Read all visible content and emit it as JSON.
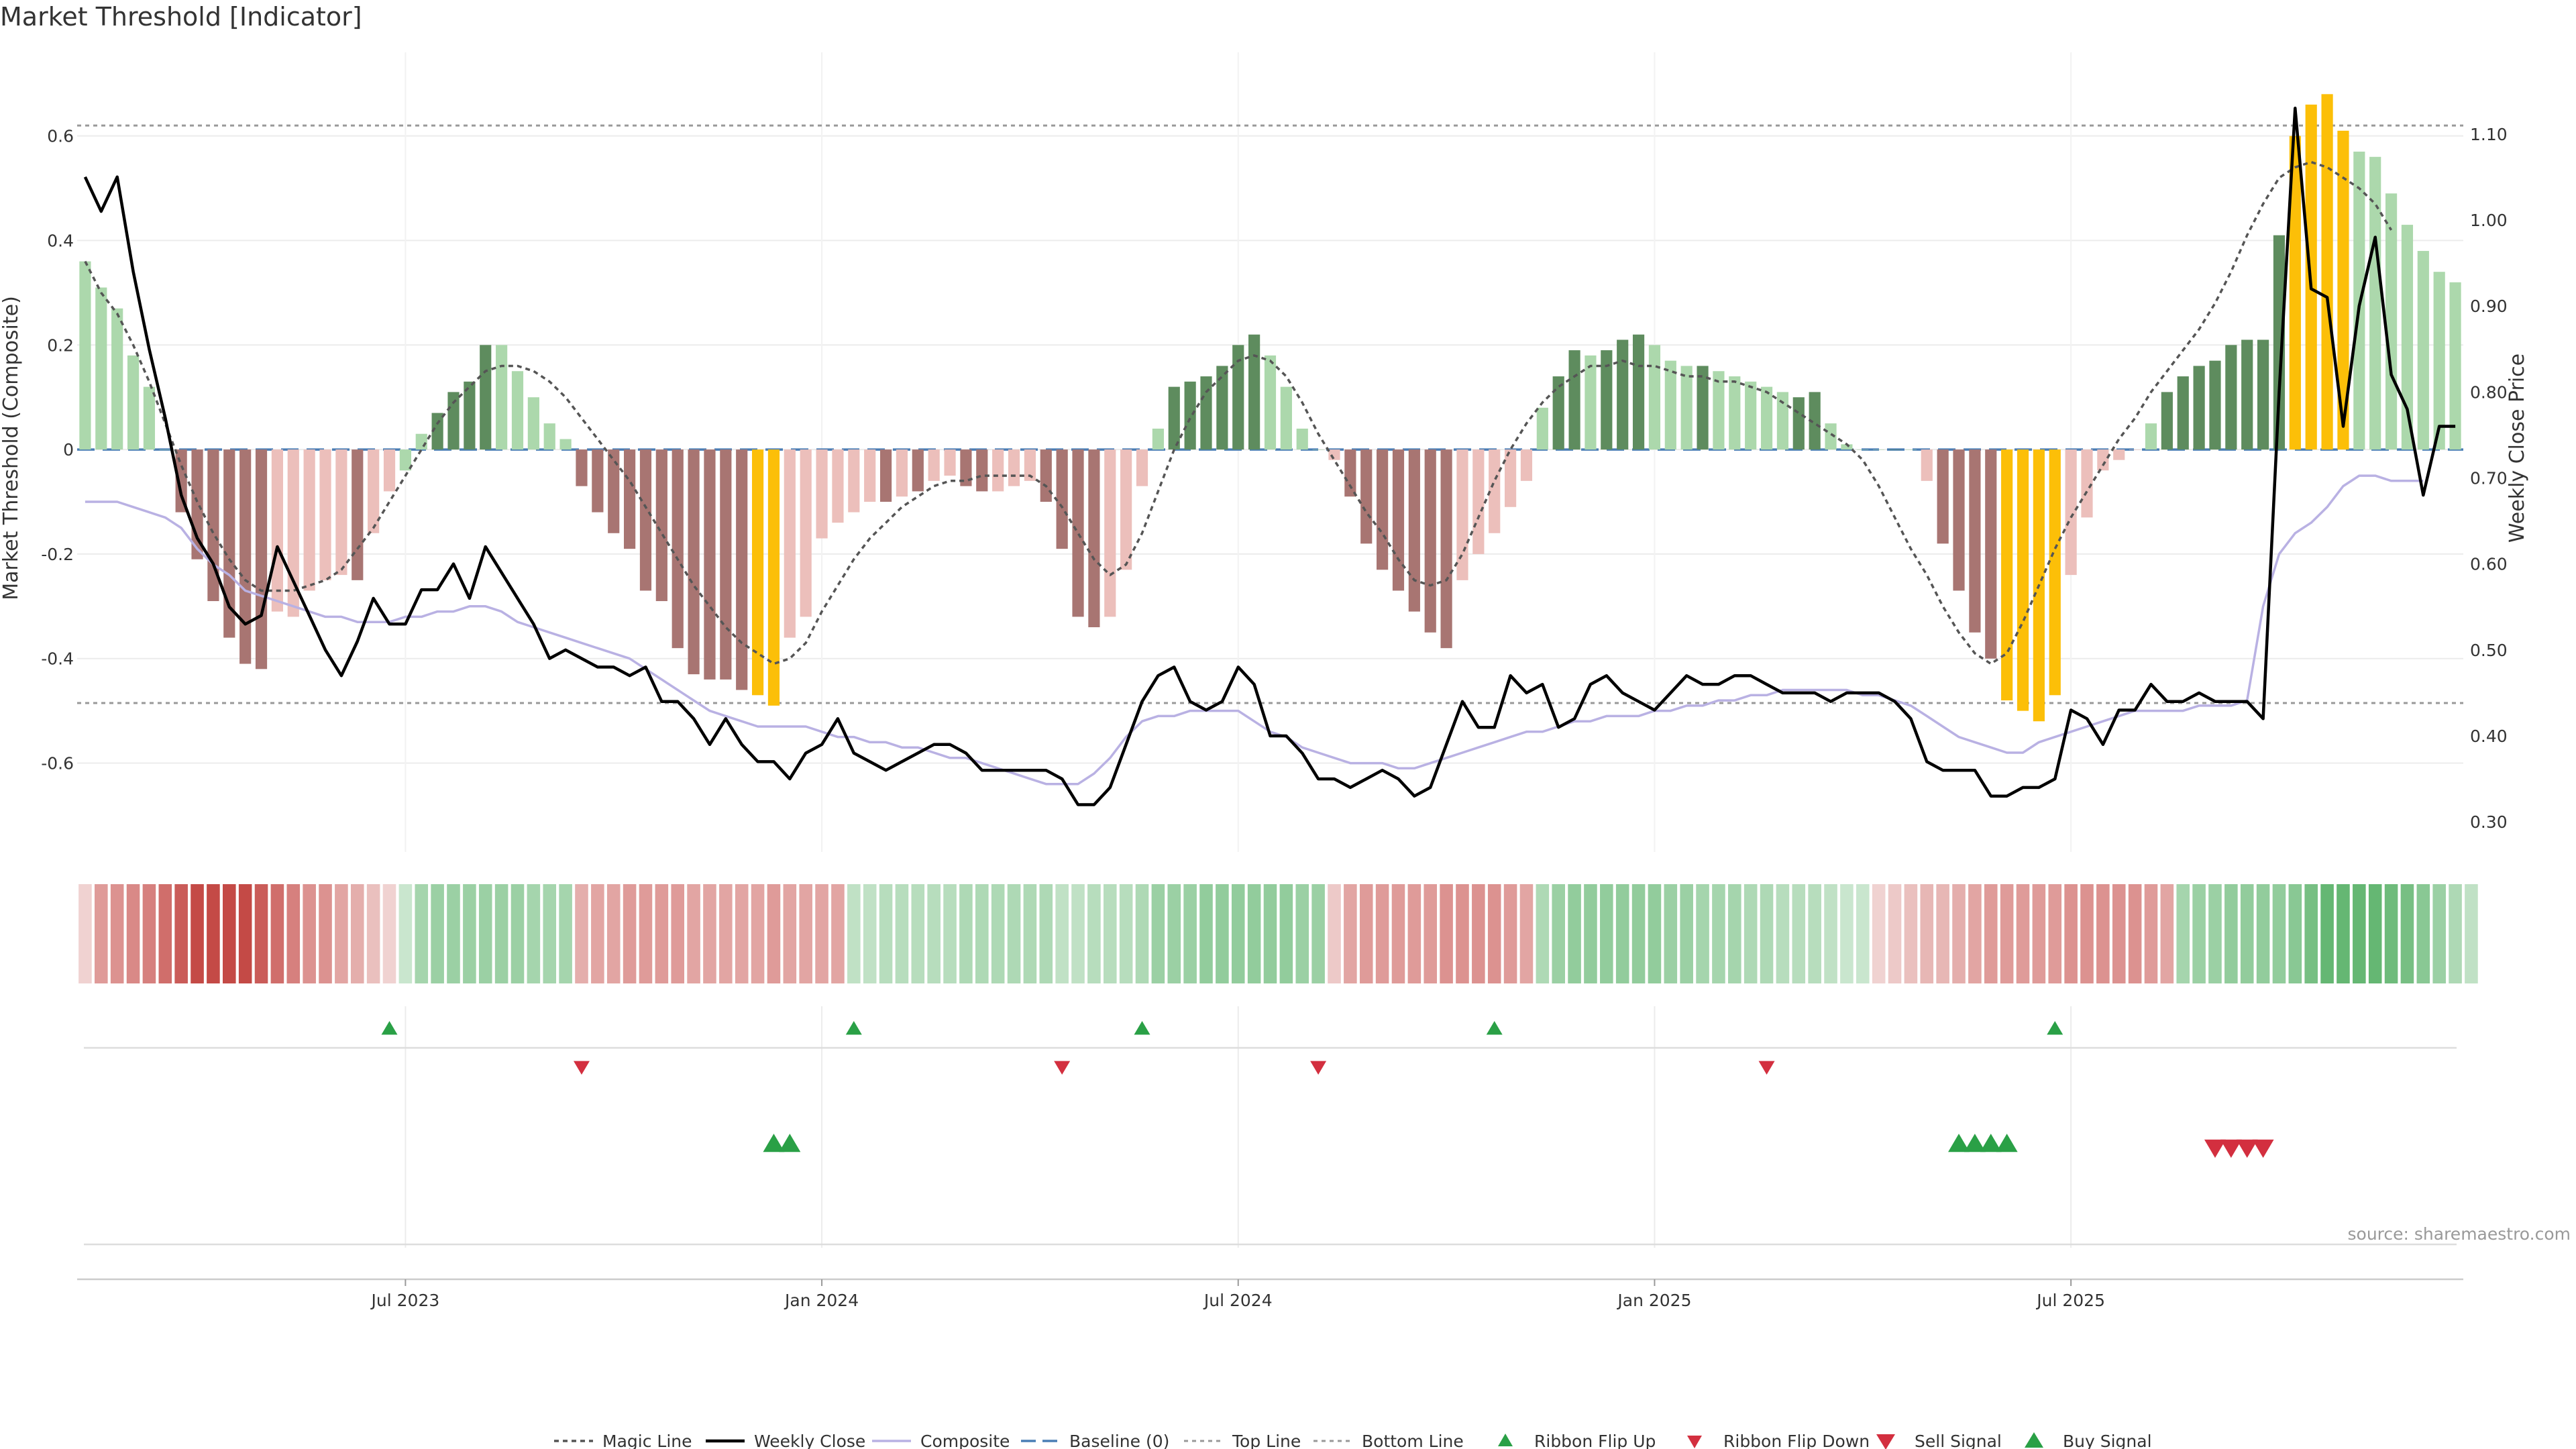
{
  "chart_data": {
    "type": "bar",
    "title": "Market Threshold [Indicator]",
    "ylabel": "Market Threshold (Composite)",
    "y2label": "Weekly Close Price",
    "source": "source: sharemaestro.com",
    "ylim": [
      -0.77,
      0.76
    ],
    "y2lim": [
      0.265,
      1.195
    ],
    "y_ticks": [
      -0.6,
      -0.4,
      -0.2,
      0,
      0.2,
      0.4,
      0.6
    ],
    "y_tick_labels": [
      "-0.6",
      "-0.4",
      "-0.2",
      "0",
      "0.2",
      "0.4",
      "0.6"
    ],
    "y2_ticks": [
      0.3,
      0.4,
      0.5,
      0.6,
      0.7,
      0.8,
      0.9,
      1.0,
      1.1
    ],
    "y2_tick_labels": [
      "0.30",
      "0.40",
      "0.50",
      "0.60",
      "0.70",
      "0.80",
      "0.90",
      "1.00",
      "1.10"
    ],
    "x_ticks": [
      20,
      46,
      72,
      98,
      124
    ],
    "x_tick_labels": [
      "Jul 2023",
      "Jan 2024",
      "Jul 2024",
      "Jan 2025",
      "Jul 2025"
    ],
    "top_line": 0.62,
    "bottom_line": -0.485,
    "baseline": 0,
    "composite_bars": [
      0.36,
      0.31,
      0.27,
      0.18,
      0.12,
      0.0,
      -0.12,
      -0.21,
      -0.29,
      -0.36,
      -0.41,
      -0.42,
      -0.31,
      -0.32,
      -0.27,
      -0.25,
      -0.24,
      -0.25,
      -0.16,
      -0.08,
      -0.04,
      0.03,
      0.07,
      0.11,
      0.13,
      0.2,
      0.2,
      0.15,
      0.1,
      0.05,
      0.02,
      -0.07,
      -0.12,
      -0.16,
      -0.19,
      -0.27,
      -0.29,
      -0.38,
      -0.43,
      -0.44,
      -0.44,
      -0.46,
      -0.47,
      -0.49,
      -0.36,
      -0.32,
      -0.17,
      -0.14,
      -0.12,
      -0.1,
      -0.1,
      -0.09,
      -0.08,
      -0.06,
      -0.05,
      -0.07,
      -0.08,
      -0.08,
      -0.07,
      -0.06,
      -0.1,
      -0.19,
      -0.32,
      -0.34,
      -0.32,
      -0.23,
      -0.07,
      0.04,
      0.12,
      0.13,
      0.14,
      0.16,
      0.2,
      0.22,
      0.18,
      0.12,
      0.04,
      0.0,
      -0.02,
      -0.09,
      -0.18,
      -0.23,
      -0.27,
      -0.31,
      -0.35,
      -0.38,
      -0.25,
      -0.2,
      -0.16,
      -0.11,
      -0.06,
      0.08,
      0.14,
      0.19,
      0.18,
      0.19,
      0.21,
      0.22,
      0.2,
      0.17,
      0.16,
      0.16,
      0.15,
      0.14,
      0.13,
      0.12,
      0.11,
      0.1,
      0.11,
      0.05,
      0.01,
      0.0,
      0.0,
      0.0,
      0.0,
      -0.06,
      -0.18,
      -0.27,
      -0.35,
      -0.4,
      -0.48,
      -0.5,
      -0.52,
      -0.47,
      -0.24,
      -0.13,
      -0.04,
      -0.02,
      0.0,
      0.05,
      0.11,
      0.14,
      0.16,
      0.17,
      0.2,
      0.21,
      0.21,
      0.41,
      0.6,
      0.66,
      0.68,
      0.61,
      0.57,
      0.56,
      0.49,
      0.43,
      0.38,
      0.34,
      0.32
    ],
    "bar_colors": [
      "lightgreen",
      "lightgreen",
      "lightgreen",
      "lightgreen",
      "lightgreen",
      "lightgreen",
      "darkred",
      "darkred",
      "darkred",
      "darkred",
      "darkred",
      "darkred",
      "lightred",
      "lightred",
      "lightred",
      "lightred",
      "lightred",
      "darkred",
      "lightred",
      "lightred",
      "lightgreen",
      "lightgreen",
      "darkgreen",
      "darkgreen",
      "darkgreen",
      "darkgreen",
      "lightgreen",
      "lightgreen",
      "lightgreen",
      "lightgreen",
      "lightgreen",
      "darkred",
      "darkred",
      "darkred",
      "darkred",
      "darkred",
      "darkred",
      "darkred",
      "darkred",
      "darkred",
      "darkred",
      "darkred",
      "gold",
      "gold",
      "lightred",
      "lightred",
      "lightred",
      "lightred",
      "lightred",
      "lightred",
      "darkred",
      "lightred",
      "darkred",
      "lightred",
      "lightred",
      "darkred",
      "darkred",
      "lightred",
      "lightred",
      "lightred",
      "darkred",
      "darkred",
      "darkred",
      "darkred",
      "lightred",
      "lightred",
      "lightred",
      "lightgreen",
      "darkgreen",
      "darkgreen",
      "darkgreen",
      "darkgreen",
      "darkgreen",
      "darkgreen",
      "lightgreen",
      "lightgreen",
      "lightgreen",
      "lightgreen",
      "lightred",
      "darkred",
      "darkred",
      "darkred",
      "darkred",
      "darkred",
      "darkred",
      "darkred",
      "lightred",
      "lightred",
      "lightred",
      "lightred",
      "lightred",
      "lightgreen",
      "darkgreen",
      "darkgreen",
      "lightgreen",
      "darkgreen",
      "darkgreen",
      "darkgreen",
      "lightgreen",
      "lightgreen",
      "lightgreen",
      "darkgreen",
      "lightgreen",
      "lightgreen",
      "lightgreen",
      "lightgreen",
      "lightgreen",
      "darkgreen",
      "darkgreen",
      "lightgreen",
      "lightgreen",
      "lightgreen",
      "lightgreen",
      "darkgreen",
      "lightgreen",
      "lightred",
      "darkred",
      "darkred",
      "darkred",
      "darkred",
      "gold",
      "gold",
      "gold",
      "gold",
      "lightred",
      "lightred",
      "lightred",
      "lightred",
      "lightred",
      "lightgreen",
      "darkgreen",
      "darkgreen",
      "darkgreen",
      "darkgreen",
      "darkgreen",
      "darkgreen",
      "darkgreen",
      "darkgreen",
      "gold",
      "gold",
      "gold",
      "gold",
      "lightgreen",
      "lightgreen",
      "lightgreen",
      "lightgreen",
      "lightgreen",
      "lightgreen",
      "lightgreen"
    ],
    "magic_line": [
      0.36,
      0.3,
      0.26,
      0.2,
      0.13,
      0.05,
      -0.03,
      -0.1,
      -0.16,
      -0.21,
      -0.25,
      -0.27,
      -0.27,
      -0.27,
      -0.26,
      -0.25,
      -0.23,
      -0.19,
      -0.15,
      -0.1,
      -0.05,
      0.0,
      0.05,
      0.09,
      0.12,
      0.15,
      0.16,
      0.16,
      0.15,
      0.13,
      0.1,
      0.06,
      0.02,
      -0.02,
      -0.06,
      -0.11,
      -0.16,
      -0.21,
      -0.26,
      -0.3,
      -0.34,
      -0.37,
      -0.39,
      -0.41,
      -0.4,
      -0.37,
      -0.31,
      -0.26,
      -0.21,
      -0.17,
      -0.14,
      -0.11,
      -0.09,
      -0.07,
      -0.06,
      -0.06,
      -0.05,
      -0.05,
      -0.05,
      -0.05,
      -0.07,
      -0.11,
      -0.16,
      -0.21,
      -0.24,
      -0.22,
      -0.16,
      -0.08,
      0.0,
      0.06,
      0.11,
      0.14,
      0.17,
      0.18,
      0.17,
      0.14,
      0.09,
      0.03,
      -0.02,
      -0.07,
      -0.12,
      -0.16,
      -0.21,
      -0.25,
      -0.26,
      -0.25,
      -0.2,
      -0.13,
      -0.06,
      0.0,
      0.05,
      0.09,
      0.12,
      0.14,
      0.16,
      0.16,
      0.17,
      0.16,
      0.16,
      0.15,
      0.14,
      0.14,
      0.13,
      0.13,
      0.12,
      0.11,
      0.09,
      0.07,
      0.05,
      0.03,
      0.01,
      -0.02,
      -0.07,
      -0.13,
      -0.19,
      -0.24,
      -0.3,
      -0.35,
      -0.39,
      -0.41,
      -0.39,
      -0.33,
      -0.26,
      -0.19,
      -0.13,
      -0.08,
      -0.03,
      0.02,
      0.06,
      0.11,
      0.15,
      0.19,
      0.23,
      0.28,
      0.34,
      0.41,
      0.47,
      0.52,
      0.54,
      0.55,
      0.54,
      0.52,
      0.5,
      0.47,
      0.42
    ],
    "composite_line": [
      -0.1,
      -0.1,
      -0.1,
      -0.11,
      -0.12,
      -0.13,
      -0.15,
      -0.19,
      -0.22,
      -0.24,
      -0.27,
      -0.28,
      -0.29,
      -0.3,
      -0.31,
      -0.32,
      -0.32,
      -0.33,
      -0.33,
      -0.33,
      -0.32,
      -0.32,
      -0.31,
      -0.31,
      -0.3,
      -0.3,
      -0.31,
      -0.33,
      -0.34,
      -0.35,
      -0.36,
      -0.37,
      -0.38,
      -0.39,
      -0.4,
      -0.42,
      -0.44,
      -0.46,
      -0.48,
      -0.5,
      -0.51,
      -0.52,
      -0.53,
      -0.53,
      -0.53,
      -0.53,
      -0.54,
      -0.55,
      -0.55,
      -0.56,
      -0.56,
      -0.57,
      -0.57,
      -0.58,
      -0.59,
      -0.59,
      -0.6,
      -0.61,
      -0.62,
      -0.63,
      -0.64,
      -0.64,
      -0.64,
      -0.62,
      -0.59,
      -0.55,
      -0.52,
      -0.51,
      -0.51,
      -0.5,
      -0.5,
      -0.5,
      -0.5,
      -0.52,
      -0.54,
      -0.55,
      -0.57,
      -0.58,
      -0.59,
      -0.6,
      -0.6,
      -0.6,
      -0.61,
      -0.61,
      -0.6,
      -0.59,
      -0.58,
      -0.57,
      -0.56,
      -0.55,
      -0.54,
      -0.54,
      -0.53,
      -0.52,
      -0.52,
      -0.51,
      -0.51,
      -0.51,
      -0.5,
      -0.5,
      -0.49,
      -0.49,
      -0.48,
      -0.48,
      -0.47,
      -0.47,
      -0.46,
      -0.46,
      -0.46,
      -0.46,
      -0.46,
      -0.47,
      -0.47,
      -0.48,
      -0.49,
      -0.51,
      -0.53,
      -0.55,
      -0.56,
      -0.57,
      -0.58,
      -0.58,
      -0.56,
      -0.55,
      -0.54,
      -0.53,
      -0.52,
      -0.51,
      -0.5,
      -0.5,
      -0.5,
      -0.5,
      -0.49,
      -0.49,
      -0.49,
      -0.48,
      -0.3,
      -0.2,
      -0.16,
      -0.14,
      -0.11,
      -0.07,
      -0.05,
      -0.05,
      -0.06,
      -0.06,
      -0.06
    ],
    "weekly_close": [
      1.05,
      1.01,
      1.05,
      0.94,
      0.85,
      0.77,
      0.68,
      0.63,
      0.6,
      0.55,
      0.53,
      0.54,
      0.62,
      0.58,
      0.54,
      0.5,
      0.47,
      0.51,
      0.56,
      0.53,
      0.53,
      0.57,
      0.57,
      0.6,
      0.56,
      0.62,
      0.59,
      0.56,
      0.53,
      0.49,
      0.5,
      0.49,
      0.48,
      0.48,
      0.47,
      0.48,
      0.44,
      0.44,
      0.42,
      0.39,
      0.42,
      0.39,
      0.37,
      0.37,
      0.35,
      0.38,
      0.39,
      0.42,
      0.38,
      0.37,
      0.36,
      0.37,
      0.38,
      0.39,
      0.39,
      0.38,
      0.36,
      0.36,
      0.36,
      0.36,
      0.36,
      0.35,
      0.32,
      0.32,
      0.34,
      0.39,
      0.44,
      0.47,
      0.48,
      0.44,
      0.43,
      0.44,
      0.48,
      0.46,
      0.4,
      0.4,
      0.38,
      0.35,
      0.35,
      0.34,
      0.35,
      0.36,
      0.35,
      0.33,
      0.34,
      0.39,
      0.44,
      0.41,
      0.41,
      0.47,
      0.45,
      0.46,
      0.41,
      0.42,
      0.46,
      0.47,
      0.45,
      0.44,
      0.43,
      0.45,
      0.47,
      0.46,
      0.46,
      0.47,
      0.47,
      0.46,
      0.45,
      0.45,
      0.45,
      0.44,
      0.45,
      0.45,
      0.45,
      0.44,
      0.42,
      0.37,
      0.36,
      0.36,
      0.36,
      0.33,
      0.33,
      0.34,
      0.34,
      0.35,
      0.43,
      0.42,
      0.39,
      0.43,
      0.43,
      0.46,
      0.44,
      0.44,
      0.45,
      0.44,
      0.44,
      0.44,
      0.42,
      0.8,
      1.13,
      0.92,
      0.91,
      0.76,
      0.9,
      0.98,
      0.82,
      0.78,
      0.68,
      0.76,
      0.76
    ],
    "ribbon_strip": [
      -0.25,
      -0.55,
      -0.6,
      -0.65,
      -0.7,
      -0.8,
      -0.9,
      -1.0,
      -1.0,
      -1.0,
      -1.0,
      -0.9,
      -0.8,
      -0.7,
      -0.6,
      -0.6,
      -0.5,
      -0.45,
      -0.35,
      -0.25,
      0.3,
      0.5,
      0.55,
      0.55,
      0.55,
      0.55,
      0.55,
      0.55,
      0.5,
      0.5,
      0.5,
      -0.45,
      -0.5,
      -0.5,
      -0.55,
      -0.55,
      -0.55,
      -0.55,
      -0.5,
      -0.5,
      -0.5,
      -0.5,
      -0.5,
      -0.55,
      -0.5,
      -0.5,
      -0.5,
      -0.5,
      0.35,
      0.35,
      0.4,
      0.4,
      0.4,
      0.4,
      0.4,
      0.45,
      0.45,
      0.45,
      0.45,
      0.45,
      0.45,
      0.35,
      0.35,
      0.4,
      0.4,
      0.4,
      0.45,
      0.55,
      0.55,
      0.55,
      0.6,
      0.6,
      0.6,
      0.6,
      0.6,
      0.6,
      0.55,
      0.55,
      -0.3,
      -0.5,
      -0.55,
      -0.55,
      -0.55,
      -0.55,
      -0.55,
      -0.6,
      -0.6,
      -0.6,
      -0.6,
      -0.55,
      -0.5,
      0.45,
      0.55,
      0.6,
      0.6,
      0.6,
      0.6,
      0.6,
      0.6,
      0.55,
      0.55,
      0.5,
      0.5,
      0.5,
      0.45,
      0.45,
      0.4,
      0.4,
      0.4,
      0.35,
      0.3,
      0.3,
      -0.25,
      -0.3,
      -0.35,
      -0.4,
      -0.4,
      -0.45,
      -0.5,
      -0.55,
      -0.55,
      -0.55,
      -0.55,
      -0.55,
      -0.6,
      -0.6,
      -0.6,
      -0.6,
      -0.6,
      -0.55,
      -0.5,
      0.5,
      0.55,
      0.55,
      0.6,
      0.6,
      0.6,
      0.6,
      0.65,
      0.75,
      0.85,
      0.85,
      0.85,
      0.85,
      0.8,
      0.75,
      0.65,
      0.55,
      0.45,
      0.35
    ],
    "ribbon_flip_up": [
      19,
      48,
      66,
      88,
      123
    ],
    "ribbon_flip_down": [
      31,
      61,
      77,
      105
    ],
    "buy_signals": [
      43,
      44,
      117,
      118,
      119,
      120
    ],
    "sell_signals": [
      133,
      134,
      135,
      136
    ],
    "legend": [
      {
        "key": "magic",
        "label": "Magic Line"
      },
      {
        "key": "close",
        "label": "Weekly Close"
      },
      {
        "key": "composite",
        "label": "Composite"
      },
      {
        "key": "baseline",
        "label": "Baseline (0)"
      },
      {
        "key": "top",
        "label": "Top Line"
      },
      {
        "key": "bottom",
        "label": "Bottom Line"
      },
      {
        "key": "flipup",
        "label": "Ribbon Flip Up"
      },
      {
        "key": "flipdown",
        "label": "Ribbon Flip Down"
      },
      {
        "key": "sell",
        "label": "Sell Signal"
      },
      {
        "key": "buy",
        "label": "Buy Signal"
      }
    ],
    "colors": {
      "darkgreen": "#5e8c5e",
      "lightgreen": "#acd8ac",
      "darkred": "#a87572",
      "lightred": "#ecbfbb",
      "gold": "#fcbf08",
      "magic": "#555555",
      "close": "#000000",
      "composite": "#b9b1e3",
      "baseline": "#4a7eb5",
      "refline": "#999999",
      "signal_green": "#2aa046",
      "signal_red": "#d32f3f"
    }
  }
}
